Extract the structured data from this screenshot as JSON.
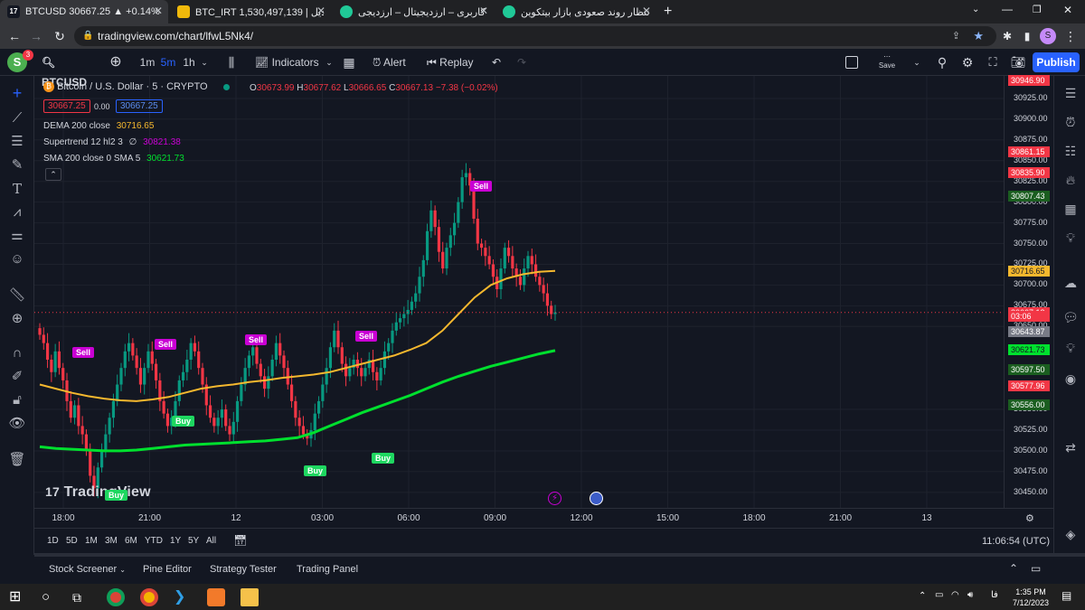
{
  "browser": {
    "tabs": [
      {
        "title": "BTCUSD 30667.25 ▲ +0.14% ...",
        "favicon_color": "#131722",
        "active": true
      },
      {
        "title": "BTC_IRT 1,530,497,139 | تبدیل",
        "favicon_color": "#f0b90b",
        "active": false
      },
      {
        "title": "حساب کاربری – ارزدیجیتال – ارزدیجی...",
        "favicon_color": "#20c997",
        "active": false
      },
      {
        "title": "انتظار روند صعودی بازار بیتکوین - ...",
        "favicon_color": "#20c997",
        "active": false
      }
    ],
    "url": "tradingview.com/chart/lfwL5Nk4/",
    "profile_initial": "S"
  },
  "toolbar": {
    "avatar_letter": "S",
    "notification_count": "3",
    "symbol": "BTCUSD",
    "intervals": [
      "1m",
      "5m",
      "1h"
    ],
    "active_interval": "5m",
    "indicators_label": "Indicators",
    "alert_label": "Alert",
    "replay_label": "Replay",
    "save_label": "Save",
    "publish_label": "Publish"
  },
  "legend": {
    "title": "Bitcoin / U.S. Dollar · 5 · CRYPTO",
    "o_label": "O",
    "o": "30673.99",
    "h_label": "H",
    "h": "30677.62",
    "l_label": "L",
    "l": "30666.65",
    "c_label": "C",
    "c": "30667.13",
    "change": "−7.38 (−0.02%)",
    "sell_price": "30667.25",
    "spread": "0.00",
    "buy_price": "30667.25",
    "dema_label": "DEMA 200 close",
    "dema_value": "30716.65",
    "supertrend_label": "Supertrend 12 hl2 3",
    "supertrend_sym": "∅",
    "supertrend_value": "30821.38",
    "sma_label": "SMA 200 close 0 SMA 5",
    "sma_value": "30621.73"
  },
  "watermark": "TradingView",
  "chart_data": {
    "type": "candlestick",
    "symbol": "BTCUSD",
    "interval": "5",
    "ylim": [
      30440,
      30950
    ],
    "y_ticks": [
      30925,
      30900,
      30875,
      30850,
      30825,
      30800,
      30775,
      30750,
      30725,
      30700,
      30675,
      30650,
      30550,
      30525,
      30500,
      30475,
      30450
    ],
    "x_ticks": [
      "18:00",
      "21:00",
      "12",
      "03:00",
      "06:00",
      "09:00",
      "12:00",
      "15:00",
      "18:00",
      "21:00",
      "13"
    ],
    "closes": [
      30640,
      30630,
      30610,
      30595,
      30620,
      30600,
      30585,
      30560,
      30540,
      30555,
      30530,
      30520,
      30500,
      30470,
      30455,
      30480,
      30500,
      30520,
      30540,
      30560,
      30580,
      30600,
      30620,
      30630,
      30615,
      30600,
      30580,
      30600,
      30620,
      30605,
      30585,
      30560,
      30545,
      30530,
      30540,
      30560,
      30585,
      30595,
      30610,
      30630,
      30620,
      30600,
      30580,
      30555,
      30540,
      30530,
      30540,
      30550,
      30530,
      30520,
      30535,
      30560,
      30580,
      30600,
      30615,
      30625,
      30605,
      30590,
      30575,
      30590,
      30610,
      30630,
      30615,
      30600,
      30580,
      30560,
      30540,
      30530,
      30520,
      30515,
      30525,
      30545,
      30560,
      30580,
      30600,
      30625,
      30645,
      30625,
      30605,
      30590,
      30600,
      30610,
      30600,
      30590,
      30600,
      30610,
      30595,
      30585,
      30600,
      30620,
      30630,
      30645,
      30655,
      30660,
      30665,
      30670,
      30680,
      30690,
      30710,
      30730,
      30765,
      30790,
      30770,
      30740,
      30720,
      30745,
      30760,
      30775,
      30800,
      30830,
      30835,
      30820,
      30780,
      30750,
      30745,
      30735,
      30725,
      30710,
      30695,
      30720,
      30745,
      30735,
      30720,
      30710,
      30700,
      30720,
      30735,
      30725,
      30710,
      30700,
      30690,
      30675,
      30665,
      30667
    ],
    "dema": [
      30580,
      30575,
      30570,
      30566,
      30563,
      30561,
      30560,
      30562,
      30565,
      30570,
      30575,
      30578,
      30580,
      30583,
      30585,
      30588,
      30590,
      30592,
      30595,
      30600,
      30605,
      30610,
      30615,
      30622,
      30630,
      30645,
      30665,
      30685,
      30700,
      30708,
      30713,
      30716,
      30717
    ],
    "sma": [
      30505,
      30503,
      30502,
      30501,
      30500,
      30500,
      30501,
      30503,
      30505,
      30507,
      30508,
      30509,
      30510,
      30511,
      30512,
      30514,
      30516,
      30522,
      30530,
      30538,
      30546,
      30553,
      30560,
      30567,
      30575,
      30583,
      30590,
      30596,
      30602,
      30607,
      30612,
      30617,
      30621
    ],
    "signals": [
      {
        "type": "Sell",
        "price": 30810
      },
      {
        "type": "Sell",
        "price": 30610
      },
      {
        "type": "Sell",
        "price": 30620
      },
      {
        "type": "Sell",
        "price": 30625
      },
      {
        "type": "Sell",
        "price": 30630
      },
      {
        "type": "Buy",
        "price": 30500
      },
      {
        "type": "Buy",
        "price": 30485
      },
      {
        "type": "Buy",
        "price": 30545
      },
      {
        "type": "Buy",
        "price": 30455
      }
    ],
    "price_labels": [
      {
        "value": "30946.90",
        "color": "#f23645",
        "price": 30946.9
      },
      {
        "value": "30861.15",
        "color": "#f23645",
        "price": 30861.15
      },
      {
        "value": "30835.90",
        "color": "#f23645",
        "price": 30835.9
      },
      {
        "value": "30807.43",
        "color": "#1b5e20",
        "price": 30807.43
      },
      {
        "value": "30716.65",
        "color": "#f5b82e",
        "price": 30716.65
      },
      {
        "value": "30667.13",
        "color": "#f23645",
        "price": 30667.13
      },
      {
        "value": "03:06",
        "color": "#f23645",
        "price": 30662
      },
      {
        "value": "30643.87",
        "color": "#787b86",
        "price": 30643.87
      },
      {
        "value": "30621.73",
        "color": "#00e02e",
        "price": 30621.73
      },
      {
        "value": "30597.50",
        "color": "#1b5e20",
        "price": 30597.5
      },
      {
        "value": "30577.96",
        "color": "#f23645",
        "price": 30577.96
      },
      {
        "value": "30556.00",
        "color": "#1b5e20",
        "price": 30556
      }
    ]
  },
  "range_buttons": [
    "1D",
    "5D",
    "1M",
    "3M",
    "6M",
    "YTD",
    "1Y",
    "5Y",
    "All"
  ],
  "clock": "11:06:54 (UTC)",
  "bottom_tabs": [
    "Stock Screener",
    "Pine Editor",
    "Strategy Tester",
    "Trading Panel"
  ],
  "taskbar": {
    "time": "1:35 PM",
    "date": "7/12/2023",
    "lang": "فا"
  }
}
